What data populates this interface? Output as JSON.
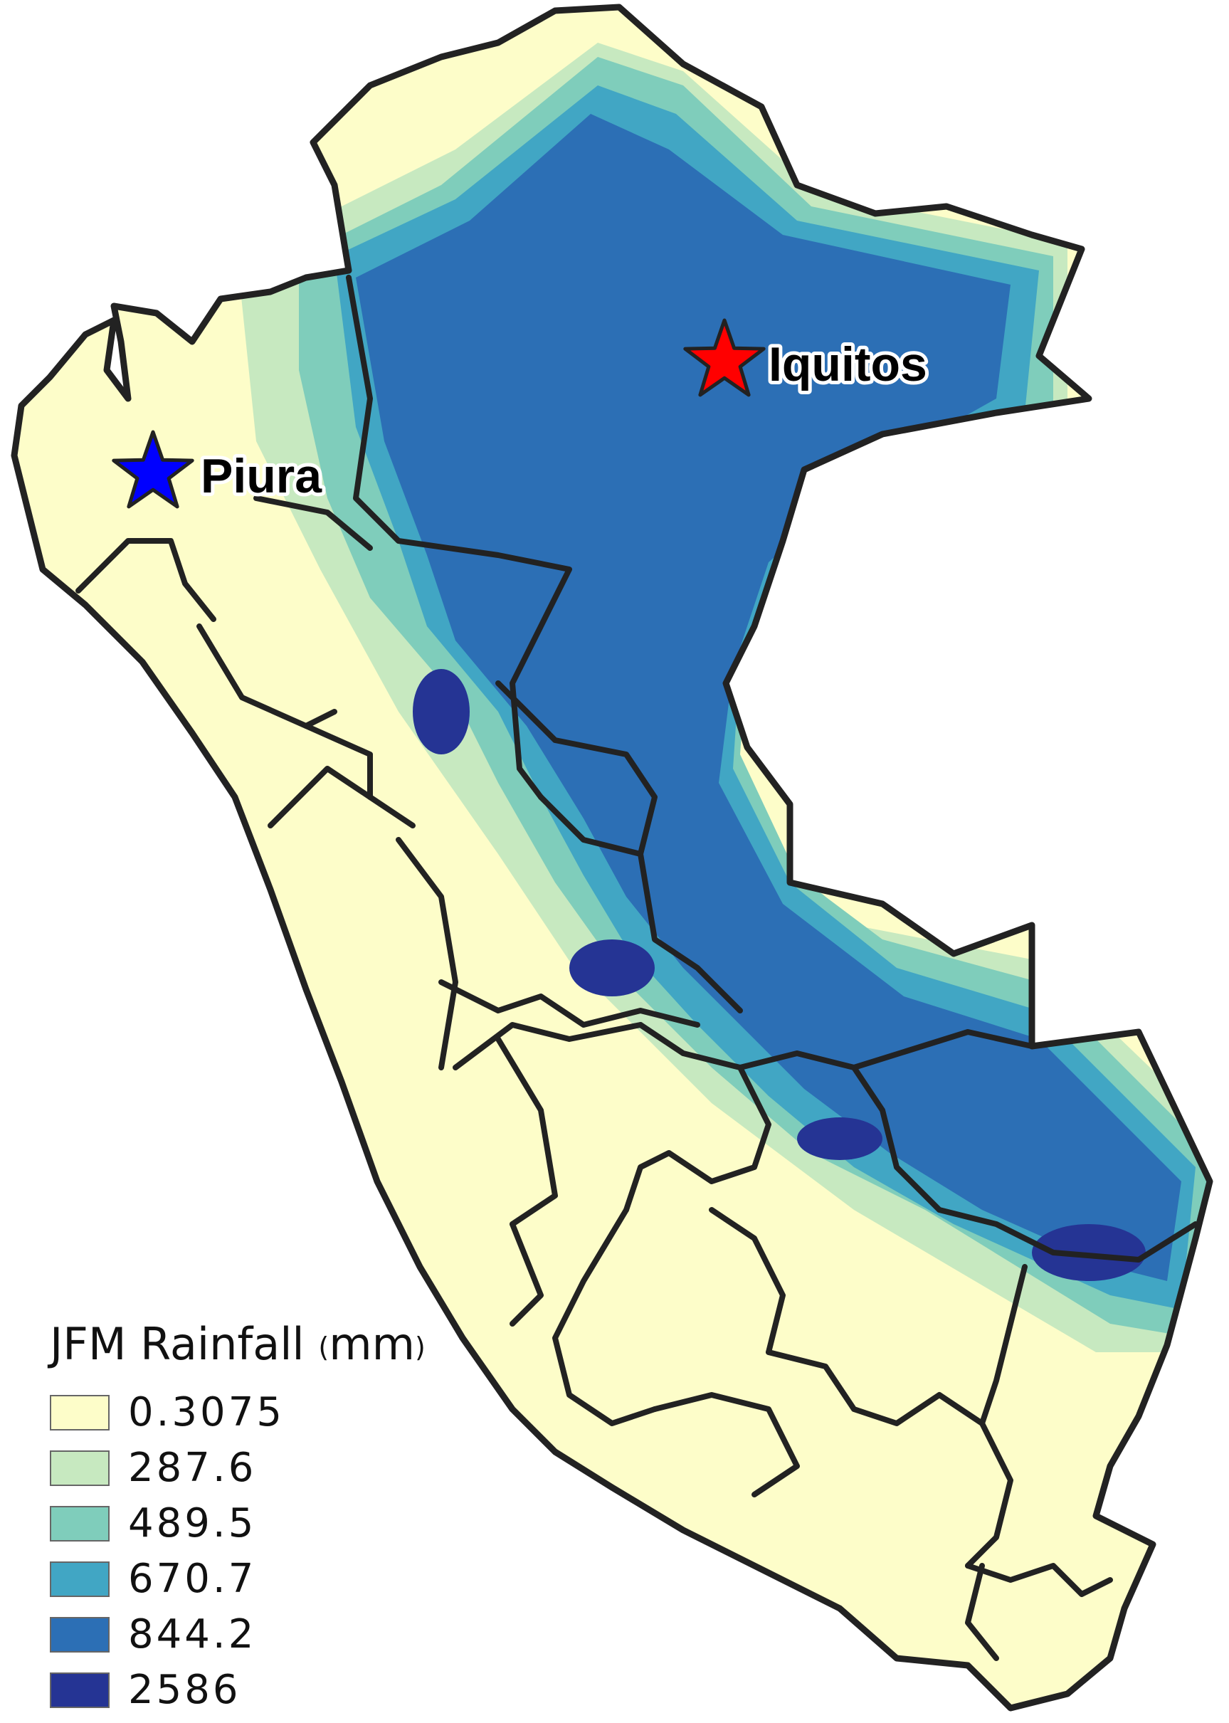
{
  "map": {
    "region": "Peru",
    "colors": {
      "ocean": "#ffffff",
      "border": "#222222",
      "dry": "#fdfdc9",
      "light": "#c7e9c0",
      "mid": "#7fcdbb",
      "moist": "#41a6c4",
      "wet": "#2c6fb5",
      "wettest": "#253494"
    }
  },
  "places": [
    {
      "name": "Piura",
      "marker_color": "#0000ff",
      "marker_icon": "star-icon"
    },
    {
      "name": "Iquitos",
      "marker_color": "#ff0000",
      "marker_icon": "star-icon"
    }
  ],
  "legend": {
    "title": "JFM Rainfall",
    "unit_open": "(",
    "unit": "mm",
    "unit_close": ")",
    "items": [
      {
        "value": "0.3075",
        "color": "#fdfdc9"
      },
      {
        "value": "287.6",
        "color": "#c7e9c0"
      },
      {
        "value": "489.5",
        "color": "#7fcdbb"
      },
      {
        "value": "670.7",
        "color": "#41a6c4"
      },
      {
        "value": "844.2",
        "color": "#2c6fb5"
      },
      {
        "value": "2586",
        "color": "#253494"
      }
    ]
  }
}
